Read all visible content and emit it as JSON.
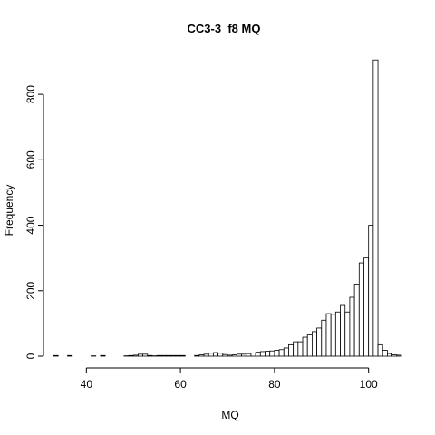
{
  "chart_data": {
    "type": "bar",
    "title": "CC3-3_f8  MQ",
    "xlabel": "MQ",
    "ylabel": "Frequency",
    "xlim": [
      33,
      107
    ],
    "ylim": [
      0,
      900
    ],
    "x_ticks": [
      "40",
      "60",
      "80",
      "100"
    ],
    "y_ticks": [
      "0",
      "200",
      "400",
      "600",
      "800"
    ],
    "bin_width": 1,
    "bin_start": 33,
    "values": [
      2,
      0,
      0,
      2,
      0,
      0,
      0,
      0,
      1,
      0,
      2,
      0,
      0,
      0,
      0,
      1,
      2,
      3,
      6,
      6,
      2,
      1,
      2,
      2,
      2,
      2,
      2,
      2,
      0,
      0,
      2,
      4,
      6,
      9,
      11,
      9,
      5,
      3,
      4,
      6,
      6,
      8,
      10,
      12,
      14,
      15,
      16,
      18,
      20,
      25,
      35,
      44,
      44,
      58,
      65,
      75,
      86,
      110,
      130,
      128,
      135,
      155,
      135,
      180,
      220,
      285,
      300,
      400,
      905,
      35,
      18,
      8,
      4,
      3
    ]
  }
}
